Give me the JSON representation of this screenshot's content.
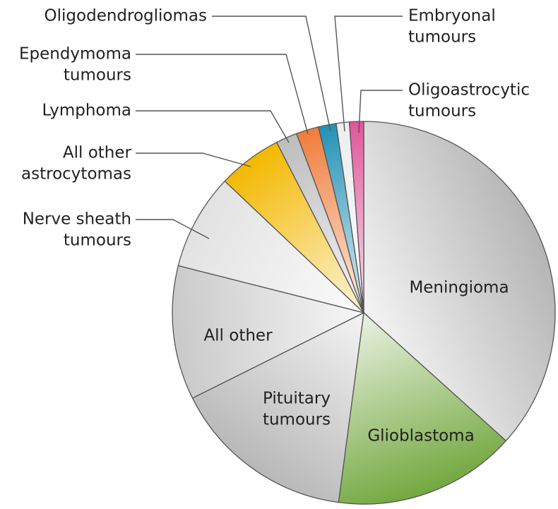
{
  "chart_data": {
    "type": "pie",
    "title": "",
    "start_angle_deg": 0,
    "direction": "clockwise",
    "unit": "percent",
    "slices": [
      {
        "label": "Meningioma",
        "label_lines": [
          "Meningioma"
        ],
        "value": 36.6,
        "color": "#b5b5b5",
        "label_mode": "inside"
      },
      {
        "label": "Glioblastoma",
        "label_lines": [
          "Glioblastoma"
        ],
        "value": 15.4,
        "color": "#73a83f",
        "label_mode": "inside"
      },
      {
        "label": "Pituitary tumours",
        "label_lines": [
          "Pituitary",
          "tumours"
        ],
        "value": 15.5,
        "color": "#b8b8b8",
        "label_mode": "inside"
      },
      {
        "label": "All other",
        "label_lines": [
          "All other"
        ],
        "value": 11.3,
        "color": "#c9c9c9",
        "label_mode": "inside"
      },
      {
        "label": "Nerve sheath tumours",
        "label_lines": [
          "Nerve sheath",
          "tumours"
        ],
        "value": 8.1,
        "color": "#e2e2e2",
        "label_mode": "outside"
      },
      {
        "label": "All other astrocytomas",
        "label_lines": [
          "All other",
          "astrocytomas"
        ],
        "value": 5.4,
        "color": "#f3b800",
        "label_mode": "outside"
      },
      {
        "label": "Lymphoma",
        "label_lines": [
          "Lymphoma"
        ],
        "value": 1.8,
        "color": "#bdbdbd",
        "label_mode": "outside"
      },
      {
        "label": "Ependymoma tumours",
        "label_lines": [
          "Ependymoma",
          "tumours"
        ],
        "value": 1.9,
        "color": "#ef7d3c",
        "label_mode": "outside"
      },
      {
        "label": "Oligodendrogliomas",
        "label_lines": [
          "Oligodendrogliomas"
        ],
        "value": 1.5,
        "color": "#2391b4",
        "label_mode": "outside"
      },
      {
        "label": "Embryonal tumours",
        "label_lines": [
          "Embryonal",
          "tumours"
        ],
        "value": 1.1,
        "color": "#ededed",
        "label_mode": "outside"
      },
      {
        "label": "Oligoastrocytic tumours",
        "label_lines": [
          "Oligoastrocytic",
          "tumours"
        ],
        "value": 1.2,
        "color": "#e0569a",
        "label_mode": "outside"
      }
    ]
  }
}
